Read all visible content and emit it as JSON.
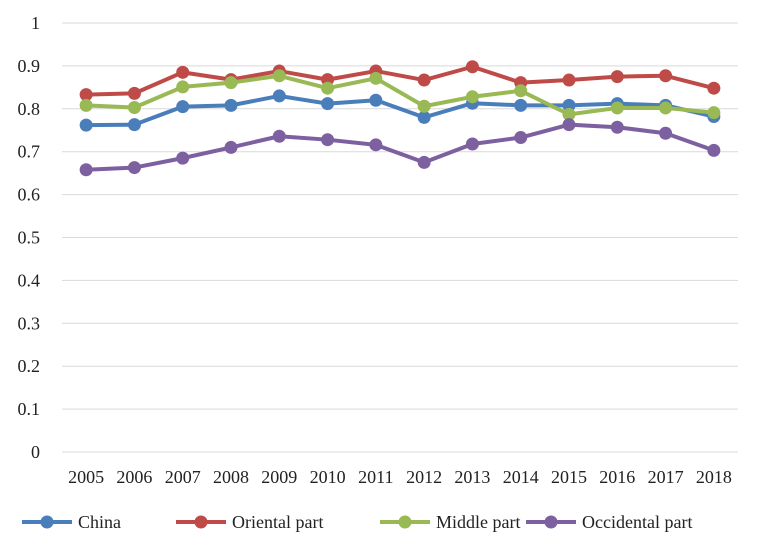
{
  "chart_data": {
    "type": "line",
    "title": "",
    "xlabel": "",
    "ylabel": "",
    "categories": [
      "2005",
      "2006",
      "2007",
      "2008",
      "2009",
      "2010",
      "2011",
      "2012",
      "2013",
      "2014",
      "2015",
      "2016",
      "2017",
      "2018"
    ],
    "ylim": [
      0,
      1
    ],
    "yticks": [
      "0",
      "0.1",
      "0.2",
      "0.3",
      "0.4",
      "0.5",
      "0.6",
      "0.7",
      "0.8",
      "0.9",
      "1"
    ],
    "grid": true,
    "legend_position": "bottom",
    "series": [
      {
        "name": "China",
        "color": "#4a7ebb",
        "values": [
          0.762,
          0.763,
          0.805,
          0.808,
          0.83,
          0.812,
          0.82,
          0.78,
          0.813,
          0.808,
          0.808,
          0.812,
          0.808,
          0.782
        ]
      },
      {
        "name": "Oriental part",
        "color": "#be4b48",
        "values": [
          0.833,
          0.836,
          0.885,
          0.868,
          0.888,
          0.868,
          0.888,
          0.867,
          0.898,
          0.861,
          0.867,
          0.875,
          0.877,
          0.848
        ]
      },
      {
        "name": "Middle part",
        "color": "#98b954",
        "values": [
          0.808,
          0.803,
          0.851,
          0.861,
          0.877,
          0.848,
          0.871,
          0.806,
          0.828,
          0.842,
          0.787,
          0.802,
          0.802,
          0.791
        ]
      },
      {
        "name": "Occidental part",
        "color": "#7d60a0",
        "values": [
          0.658,
          0.663,
          0.685,
          0.71,
          0.736,
          0.728,
          0.716,
          0.675,
          0.718,
          0.733,
          0.763,
          0.757,
          0.743,
          0.703
        ]
      }
    ]
  }
}
